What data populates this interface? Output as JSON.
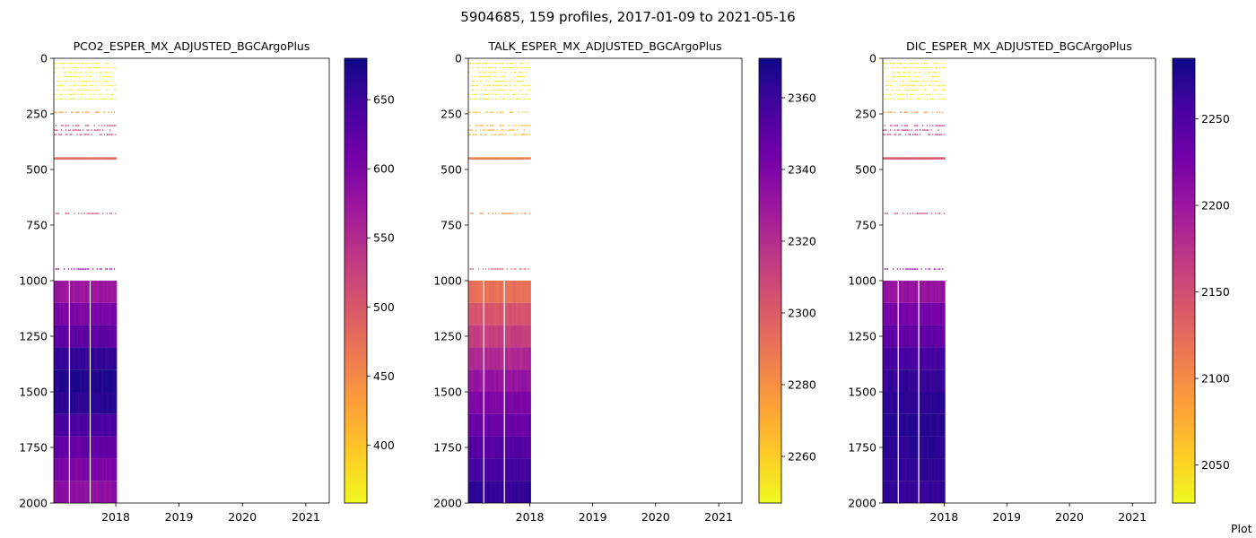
{
  "figure": {
    "suptitle": "5904685, 159 profiles, 2017-01-09 to 2021-05-16",
    "footer": "Plot"
  },
  "colormap": {
    "name": "plasma",
    "stops": [
      "#0d0887",
      "#46039f",
      "#7201a8",
      "#9c179e",
      "#bd3786",
      "#d8576b",
      "#ed7953",
      "#fb9f3a",
      "#fdca26",
      "#f0f921"
    ]
  },
  "chart_data": [
    {
      "type": "heatmap",
      "title": "PCO2_ESPER_MX_ADJUSTED_BGCArgoPlus",
      "x_axis": {
        "range": [
          "2017-01-09",
          "2021-05-16"
        ],
        "ticks": [
          "2018",
          "2019",
          "2020",
          "2021"
        ]
      },
      "y_axis": {
        "range": [
          0,
          2000
        ],
        "inverted": true,
        "ticks": [
          "0",
          "250",
          "500",
          "750",
          "1000",
          "1250",
          "1500",
          "1750",
          "2000"
        ]
      },
      "colorbar": {
        "range": [
          358,
          680
        ],
        "ticks": [
          "400",
          "450",
          "500",
          "550",
          "600",
          "650"
        ]
      },
      "data_end_date": "2018-01-06",
      "bands": [
        {
          "depth": [
            20,
            200
          ],
          "value": 362,
          "sparse": true
        },
        {
          "depth": [
            240,
            260
          ],
          "value": 430,
          "sparse": true
        },
        {
          "depth": [
            300,
            360
          ],
          "value": 520,
          "sparse": true
        },
        {
          "depth": [
            445,
            455
          ],
          "value": 478
        },
        {
          "depth": [
            695,
            705
          ],
          "value": 520,
          "sparse": true
        },
        {
          "depth": [
            945,
            955
          ],
          "value": 590,
          "sparse": true
        },
        {
          "depth": [
            1000,
            1100
          ],
          "value": 575
        },
        {
          "depth": [
            1100,
            1200
          ],
          "value": 600
        },
        {
          "depth": [
            1200,
            1300
          ],
          "value": 625
        },
        {
          "depth": [
            1300,
            1400
          ],
          "value": 655
        },
        {
          "depth": [
            1400,
            1500
          ],
          "value": 668
        },
        {
          "depth": [
            1500,
            1600
          ],
          "value": 662
        },
        {
          "depth": [
            1600,
            1700
          ],
          "value": 640
        },
        {
          "depth": [
            1700,
            1800
          ],
          "value": 620
        },
        {
          "depth": [
            1800,
            1900
          ],
          "value": 600
        },
        {
          "depth": [
            1900,
            2000
          ],
          "value": 585
        }
      ]
    },
    {
      "type": "heatmap",
      "title": "TALK_ESPER_MX_ADJUSTED_BGCArgoPlus",
      "x_axis": {
        "range": [
          "2017-01-09",
          "2021-05-16"
        ],
        "ticks": [
          "2018",
          "2019",
          "2020",
          "2021"
        ]
      },
      "y_axis": {
        "range": [
          0,
          2000
        ],
        "inverted": true,
        "ticks": [
          "0",
          "250",
          "500",
          "750",
          "1000",
          "1250",
          "1500",
          "1750",
          "2000"
        ]
      },
      "colorbar": {
        "range": [
          2247,
          2371
        ],
        "ticks": [
          "2260",
          "2280",
          "2300",
          "2320",
          "2340",
          "2360"
        ]
      },
      "data_end_date": "2018-01-06",
      "bands": [
        {
          "depth": [
            20,
            200
          ],
          "value": 2252,
          "sparse": true
        },
        {
          "depth": [
            240,
            260
          ],
          "value": 2265,
          "sparse": true
        },
        {
          "depth": [
            300,
            360
          ],
          "value": 2270,
          "sparse": true
        },
        {
          "depth": [
            445,
            455
          ],
          "value": 2285
        },
        {
          "depth": [
            695,
            705
          ],
          "value": 2282,
          "sparse": true
        },
        {
          "depth": [
            945,
            955
          ],
          "value": 2300,
          "sparse": true
        },
        {
          "depth": [
            1000,
            1100
          ],
          "value": 2292
        },
        {
          "depth": [
            1100,
            1200
          ],
          "value": 2303
        },
        {
          "depth": [
            1200,
            1300
          ],
          "value": 2313
        },
        {
          "depth": [
            1300,
            1400
          ],
          "value": 2322
        },
        {
          "depth": [
            1400,
            1500
          ],
          "value": 2332
        },
        {
          "depth": [
            1500,
            1600
          ],
          "value": 2340
        },
        {
          "depth": [
            1600,
            1700
          ],
          "value": 2346
        },
        {
          "depth": [
            1700,
            1800
          ],
          "value": 2352
        },
        {
          "depth": [
            1800,
            1900
          ],
          "value": 2357
        },
        {
          "depth": [
            1900,
            2000
          ],
          "value": 2362
        }
      ]
    },
    {
      "type": "heatmap",
      "title": "DIC_ESPER_MX_ADJUSTED_BGCArgoPlus",
      "x_axis": {
        "range": [
          "2017-01-09",
          "2021-05-16"
        ],
        "ticks": [
          "2018",
          "2019",
          "2020",
          "2021"
        ]
      },
      "y_axis": {
        "range": [
          0,
          2000
        ],
        "inverted": true,
        "ticks": [
          "0",
          "250",
          "500",
          "750",
          "1000",
          "1250",
          "1500",
          "1750",
          "2000"
        ]
      },
      "colorbar": {
        "range": [
          2028,
          2285
        ],
        "ticks": [
          "2050",
          "2100",
          "2150",
          "2200",
          "2250"
        ]
      },
      "data_end_date": "2018-01-06",
      "bands": [
        {
          "depth": [
            20,
            200
          ],
          "value": 2035,
          "sparse": true
        },
        {
          "depth": [
            240,
            260
          ],
          "value": 2090,
          "sparse": true
        },
        {
          "depth": [
            300,
            360
          ],
          "value": 2170,
          "sparse": true
        },
        {
          "depth": [
            445,
            455
          ],
          "value": 2140
        },
        {
          "depth": [
            695,
            705
          ],
          "value": 2160,
          "sparse": true
        },
        {
          "depth": [
            945,
            955
          ],
          "value": 2210,
          "sparse": true
        },
        {
          "depth": [
            1000,
            1100
          ],
          "value": 2205
        },
        {
          "depth": [
            1100,
            1200
          ],
          "value": 2225
        },
        {
          "depth": [
            1200,
            1300
          ],
          "value": 2240
        },
        {
          "depth": [
            1300,
            1400
          ],
          "value": 2255
        },
        {
          "depth": [
            1400,
            1500
          ],
          "value": 2265
        },
        {
          "depth": [
            1500,
            1600
          ],
          "value": 2270
        },
        {
          "depth": [
            1600,
            1700
          ],
          "value": 2272
        },
        {
          "depth": [
            1700,
            1800
          ],
          "value": 2270
        },
        {
          "depth": [
            1800,
            1900
          ],
          "value": 2268
        },
        {
          "depth": [
            1900,
            2000
          ],
          "value": 2265
        }
      ]
    }
  ]
}
